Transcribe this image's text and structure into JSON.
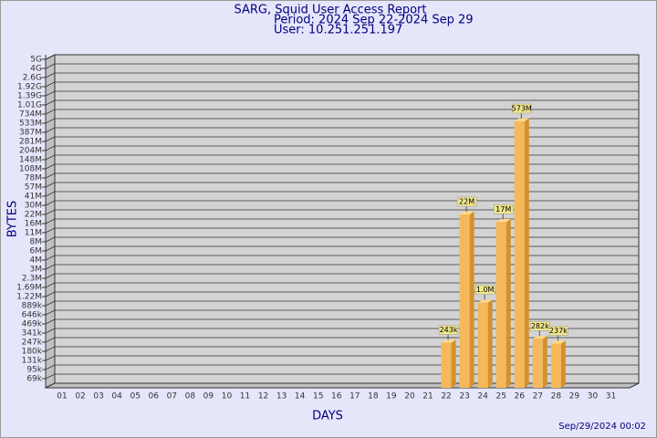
{
  "chart_data": {
    "type": "bar",
    "title": "SARG, Squid User Access Report",
    "subtitle": "Period: 2024 Sep 22-2024 Sep 29",
    "user": "User: 10.251.251.197",
    "y_label": "BYTES",
    "x_label": "DAYS",
    "timestamp": "Sep/29/2024 00:02",
    "categories": [
      "01",
      "02",
      "03",
      "04",
      "05",
      "06",
      "07",
      "08",
      "09",
      "10",
      "11",
      "12",
      "13",
      "14",
      "15",
      "16",
      "17",
      "18",
      "19",
      "20",
      "21",
      "22",
      "23",
      "24",
      "25",
      "26",
      "27",
      "28",
      "29",
      "30",
      "31"
    ],
    "values": [
      null,
      null,
      null,
      null,
      null,
      null,
      null,
      null,
      null,
      null,
      null,
      null,
      null,
      null,
      null,
      null,
      null,
      null,
      null,
      null,
      null,
      243000,
      22000000,
      1000000,
      17000000,
      573000000,
      282000,
      237000,
      null,
      null,
      null
    ],
    "value_labels": [
      null,
      null,
      null,
      null,
      null,
      null,
      null,
      null,
      null,
      null,
      null,
      null,
      null,
      null,
      null,
      null,
      null,
      null,
      null,
      null,
      null,
      "243k",
      "22M",
      "1.0M",
      "17M",
      "573M",
      "282k",
      "237k",
      null,
      null,
      null
    ],
    "color": "#f5b85a",
    "ylim": [
      0,
      5000000000
    ],
    "yticks": [
      {
        "value": 69000,
        "label": "69k"
      },
      {
        "value": 95000,
        "label": "95k"
      },
      {
        "value": 131000,
        "label": "131k"
      },
      {
        "value": 180000,
        "label": "180k"
      },
      {
        "value": 247000,
        "label": "247k"
      },
      {
        "value": 341000,
        "label": "341k"
      },
      {
        "value": 469000,
        "label": "469k"
      },
      {
        "value": 646000,
        "label": "646k"
      },
      {
        "value": 889000,
        "label": "889k"
      },
      {
        "value": 1220000,
        "label": "1.22M"
      },
      {
        "value": 1690000,
        "label": "1.69M"
      },
      {
        "value": 2300000,
        "label": "2.3M"
      },
      {
        "value": 3000000,
        "label": "3M"
      },
      {
        "value": 4000000,
        "label": "4M"
      },
      {
        "value": 6000000,
        "label": "6M"
      },
      {
        "value": 8000000,
        "label": "8M"
      },
      {
        "value": 11000000,
        "label": "11M"
      },
      {
        "value": 16000000,
        "label": "16M"
      },
      {
        "value": 22000000,
        "label": "22M"
      },
      {
        "value": 30000000,
        "label": "30M"
      },
      {
        "value": 41000000,
        "label": "41M"
      },
      {
        "value": 57000000,
        "label": "57M"
      },
      {
        "value": 78000000,
        "label": "78M"
      },
      {
        "value": 108000000,
        "label": "108M"
      },
      {
        "value": 148000000,
        "label": "148M"
      },
      {
        "value": 204000000,
        "label": "204M"
      },
      {
        "value": 281000000,
        "label": "281M"
      },
      {
        "value": 387000000,
        "label": "387M"
      },
      {
        "value": 533000000,
        "label": "533M"
      },
      {
        "value": 734000000,
        "label": "734M"
      },
      {
        "value": 1010000000,
        "label": "1.01G"
      },
      {
        "value": 1390000000,
        "label": "1.39G"
      },
      {
        "value": 1920000000,
        "label": "1.92G"
      },
      {
        "value": 2600000000,
        "label": "2.6G"
      },
      {
        "value": 4000000000,
        "label": "4G"
      },
      {
        "value": 5000000000,
        "label": "5G"
      }
    ],
    "grid": true
  }
}
